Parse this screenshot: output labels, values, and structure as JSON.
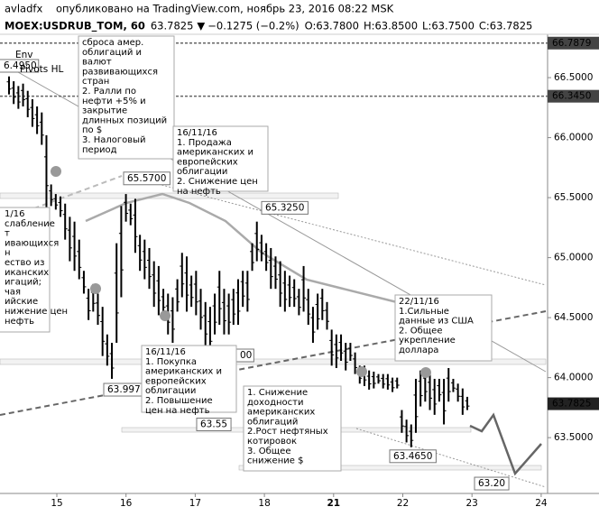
{
  "header": {
    "author": "avladfx",
    "published": "опубликовано на TradingView.com, ноябрь 23, 2016 08:22 MSK",
    "symbol": "MOEX:USDRUB_TOM, 60",
    "last": "63.7825",
    "arrow": "▼",
    "change": "−0.1275 (−0.2%)",
    "ohlc": [
      {
        "key": "O:",
        "val": "63.7800"
      },
      {
        "key": "H:",
        "val": "63.8500"
      },
      {
        "key": "L:",
        "val": "63.7500"
      },
      {
        "key": "C:",
        "val": "63.7825"
      }
    ]
  },
  "chart_data": {
    "type": "ohlc",
    "ylim": [
      63.05,
      66.85
    ],
    "yticks": [
      {
        "value": 66.5,
        "label": "66.5000"
      },
      {
        "value": 66.0,
        "label": "66.0000"
      },
      {
        "value": 65.5,
        "label": "65.5000"
      },
      {
        "value": 65.0,
        "label": "65.0000"
      },
      {
        "value": 64.5,
        "label": "64.5000"
      },
      {
        "value": 64.0,
        "label": "64.0000"
      },
      {
        "value": 63.5,
        "label": "63.5000"
      }
    ],
    "xticks": [
      "15",
      "16",
      "17",
      "18",
      "21",
      "22",
      "23",
      "24"
    ],
    "color": "#000000",
    "high": [
      66.51,
      66.47,
      66.43,
      66.45,
      66.39,
      66.32,
      66.26,
      66.21,
      66.02,
      65.61,
      65.53,
      65.51,
      65.45,
      65.34,
      65.3,
      65.15,
      64.89,
      64.74,
      64.78,
      64.7,
      64.59,
      64.36,
      64.29,
      65.12,
      65.43,
      65.53,
      65.45,
      65.49,
      65.19,
      65.15,
      65.08,
      64.97,
      64.93,
      64.74,
      64.7,
      64.67,
      64.82,
      65.04,
      65.01,
      64.85,
      64.89,
      64.74,
      64.63,
      64.59,
      64.7,
      64.89,
      64.74,
      64.7,
      64.74,
      64.82,
      64.89,
      64.89,
      65.12,
      65.3,
      65.19,
      65.12,
      65.08,
      65.01,
      64.97,
      64.89,
      64.85,
      64.82,
      64.74,
      64.93,
      64.74,
      64.59,
      64.7,
      64.74,
      64.63,
      64.4,
      64.36,
      64.36,
      64.29,
      64.29,
      64.21,
      64.1,
      64.1,
      64.06,
      64.05,
      64.03,
      64.03,
      64.03,
      64.0,
      64.0,
      63.73,
      63.65,
      63.61,
      63.99,
      64.06,
      64.08,
      64.06,
      63.99,
      63.99,
      63.99,
      64.08,
      63.99,
      63.95,
      63.91,
      63.84
    ],
    "low": [
      66.36,
      66.28,
      66.24,
      66.26,
      66.17,
      66.09,
      66.03,
      65.94,
      65.42,
      65.43,
      65.4,
      65.34,
      65.15,
      64.97,
      64.89,
      64.82,
      64.7,
      64.48,
      64.55,
      64.44,
      64.18,
      64.1,
      63.99,
      64.29,
      64.67,
      65.3,
      65.27,
      65.04,
      64.89,
      64.82,
      64.74,
      64.59,
      64.52,
      64.52,
      64.36,
      64.29,
      64.55,
      64.67,
      64.55,
      64.59,
      64.52,
      64.4,
      64.25,
      64.18,
      64.36,
      64.44,
      64.36,
      64.36,
      64.44,
      64.44,
      64.59,
      64.55,
      64.89,
      64.97,
      64.97,
      64.89,
      64.74,
      64.74,
      64.59,
      64.55,
      64.59,
      64.59,
      64.52,
      64.55,
      64.44,
      64.29,
      64.4,
      64.48,
      64.4,
      64.1,
      64.08,
      64.14,
      64.06,
      64.14,
      64.03,
      63.95,
      63.93,
      63.9,
      63.91,
      63.95,
      63.91,
      63.9,
      63.88,
      63.91,
      63.54,
      63.46,
      63.42,
      63.54,
      63.76,
      63.8,
      63.73,
      63.69,
      63.8,
      63.61,
      63.8,
      63.88,
      63.8,
      63.69,
      63.73
    ],
    "price_lines": [
      {
        "value": 66.7879,
        "label": "66.7879"
      },
      {
        "value": 66.345,
        "label": "66.3450"
      },
      {
        "value": 63.7825,
        "label": "63.7825"
      }
    ],
    "price_labels": [
      {
        "value": 65.57,
        "label": "65.5700"
      },
      {
        "value": 65.325,
        "label": "65.3250"
      },
      {
        "value": 63.997,
        "label": "63.997"
      },
      {
        "value": 63.55,
        "label": "63.55"
      },
      {
        "value": 63.465,
        "label": "63.4650"
      },
      {
        "value": 63.2,
        "label": "63.20"
      }
    ],
    "indicators": [
      "Env",
      "Pivots HL"
    ],
    "cut_labels": [
      "6.4950",
      "00"
    ],
    "annotations": [
      {
        "lines": [
          "сброса амер.",
          "облигаций и",
          "валют",
          "развивающихся",
          "стран",
          "2. Ралли по",
          "нефти +5% и",
          "закрытие",
          "длинных позиций",
          "по $",
          "3. Налоговый",
          "период"
        ]
      },
      {
        "lines": [
          "16/11/16",
          "1. Продажа",
          "американских и",
          "европейских",
          "облигации",
          "2. Снижение цен",
          "на нефть"
        ]
      },
      {
        "lines": [
          "1/16",
          "слабление",
          "т",
          "ивающихся",
          "н",
          "ество из",
          "иканских",
          "игаций;",
          "чая",
          "ийские",
          "нижение цен",
          "нефть"
        ]
      },
      {
        "lines": [
          "16/11/16",
          "1. Покупка",
          "американских и",
          "европейских",
          "облигации",
          "2. Повышение",
          "цен на нефть"
        ]
      },
      {
        "lines": [
          "1. Снижение",
          "доходности",
          "американских",
          "облигаций",
          "2.Рост нефтяных",
          "котировок",
          "3. Общее",
          "снижение $"
        ]
      },
      {
        "lines": [
          "22/11/16",
          "1.Сильные",
          "данные из США",
          "2. Общее",
          "укрепление",
          "доллара"
        ]
      }
    ]
  }
}
